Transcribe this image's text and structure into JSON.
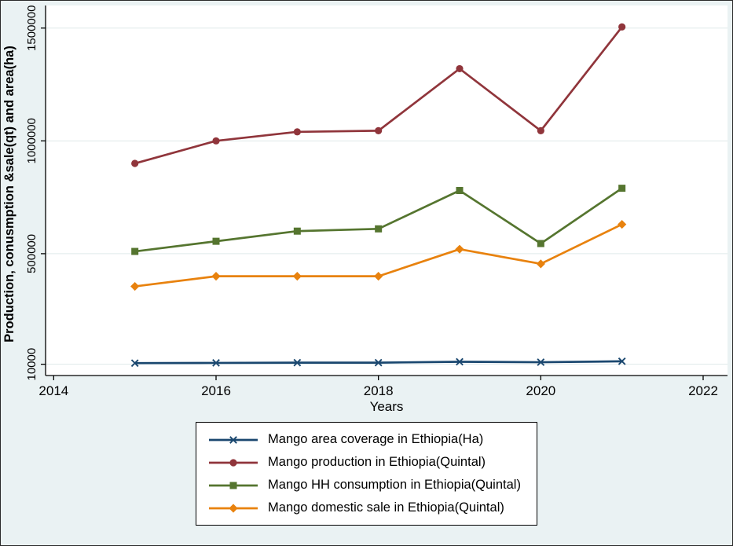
{
  "figure": {
    "background": "#eaf2f3",
    "plot_background": "#ffffff",
    "gridline_color": "#dfe9ea"
  },
  "chart_data": {
    "type": "line",
    "title": "",
    "xlabel": "Years",
    "ylabel": "Production, conusmption &sale(qt) and area(ha)",
    "x": [
      2015,
      2016,
      2017,
      2018,
      2019,
      2020,
      2021
    ],
    "xticks": [
      2014,
      2016,
      2018,
      2020,
      2022
    ],
    "yticks": [
      10000,
      500000,
      1000000,
      1500000
    ],
    "xlim": [
      2013.9,
      2022.3
    ],
    "ylim": [
      -40000,
      1600000
    ],
    "grid": "horizontal",
    "legend_position": "bottom",
    "series": [
      {
        "name": "Mango area coverage in Ethiopia(Ha)",
        "color": "#1a476f",
        "marker": "x",
        "values": [
          15000,
          16000,
          17000,
          17000,
          21000,
          19000,
          23000
        ]
      },
      {
        "name": "Mango production in Ethiopia(Quintal)",
        "color": "#90353b",
        "marker": "circle",
        "values": [
          900000,
          1000000,
          1040000,
          1045000,
          1320000,
          1045000,
          1505000
        ]
      },
      {
        "name": "Mango HH consumption in Ethiopia(Quintal)",
        "color": "#55752f",
        "marker": "square",
        "values": [
          510000,
          555000,
          600000,
          610000,
          780000,
          545000,
          790000
        ]
      },
      {
        "name": "Mango domestic sale in Ethiopia(Quintal)",
        "color": "#e8820e",
        "marker": "diamond",
        "values": [
          355000,
          400000,
          400000,
          400000,
          520000,
          455000,
          630000
        ]
      }
    ]
  }
}
